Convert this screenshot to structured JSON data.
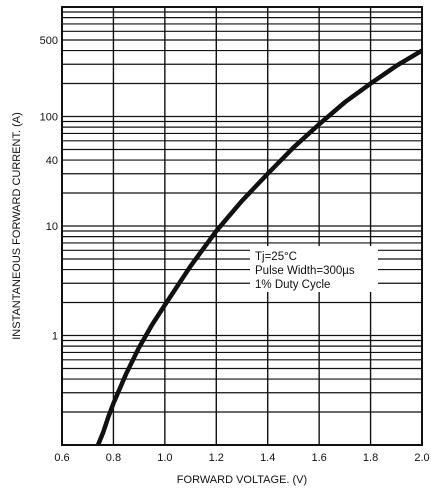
{
  "chart_data": {
    "type": "line",
    "x_axis": {
      "label": "FORWARD VOLTAGE. (V)",
      "min": 0.6,
      "max": 2.0,
      "tick_values": [
        0.6,
        0.8,
        1.0,
        1.2,
        1.4,
        1.6,
        1.8,
        2.0
      ],
      "tick_labels": [
        "0.6",
        "0.8",
        "1.0",
        "1.2",
        "1.4",
        "1.6",
        "1.8",
        "2.0"
      ],
      "major_grid": [
        0.6,
        0.8,
        1.0,
        1.2,
        1.4,
        1.6,
        1.8,
        2.0
      ]
    },
    "y_axis": {
      "label": "INSTANTANEOUS FORWARD CURRENT. (A)",
      "scale": "log",
      "min": 0.1,
      "max": 1000,
      "tick_values": [
        1,
        10,
        40,
        100,
        500
      ],
      "tick_labels": [
        "1",
        "10",
        "40",
        "100",
        "500"
      ],
      "grid_values": [
        0.2,
        0.3,
        0.4,
        0.5,
        0.6,
        0.7,
        0.8,
        0.9,
        1,
        2,
        3,
        4,
        5,
        6,
        7,
        8,
        9,
        10,
        20,
        30,
        40,
        50,
        60,
        70,
        80,
        90,
        100,
        200,
        300,
        400,
        500,
        600,
        700,
        800,
        900,
        1000
      ]
    },
    "grid": true,
    "series": [
      {
        "color": "#111111",
        "x": [
          0.74,
          0.76,
          0.78,
          0.8,
          0.85,
          0.9,
          0.95,
          1.0,
          1.1,
          1.2,
          1.3,
          1.4,
          1.5,
          1.6,
          1.7,
          1.8,
          1.9,
          2.0
        ],
        "y": [
          0.1,
          0.13,
          0.18,
          0.24,
          0.45,
          0.78,
          1.25,
          1.9,
          4.3,
          9.0,
          17,
          30,
          52,
          85,
          135,
          200,
          290,
          400
        ]
      }
    ],
    "annotation": {
      "lines": [
        "Tj=25°C",
        "Pulse Width=300µs",
        "1% Duty Cycle"
      ]
    }
  }
}
